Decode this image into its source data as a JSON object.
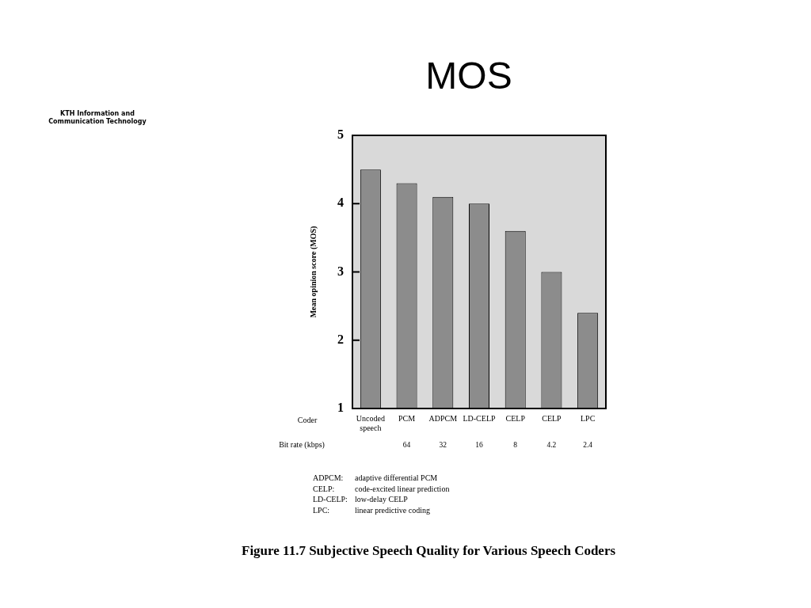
{
  "chart_data": {
    "type": "bar",
    "title": "MOS",
    "xlabel": "Coder",
    "ylabel": "Mean opinion score (MOS)",
    "categories": [
      "Uncoded speech",
      "PCM",
      "ADPCM",
      "LD-CELP",
      "CELP",
      "CELP",
      "LPC"
    ],
    "values": [
      4.5,
      4.3,
      4.1,
      4.0,
      3.6,
      3.0,
      2.4
    ],
    "color": "#8c8c8c",
    "ylim": [
      1,
      5
    ],
    "yticks": [
      1,
      2,
      3,
      4,
      5
    ],
    "grid": false,
    "legend": false,
    "annotations": [
      "KTH Information and Communication Technology",
      "Bit rate (kbps)",
      "64",
      "32",
      "16",
      "8",
      "4.2",
      "2.4",
      "ADPCM: adaptive differential PCM",
      "CELP: code-excited linear prediction",
      "LD-CELP: low-delay CELP",
      "LPC: linear predictive coding",
      "Figure 11.7 Subjective Speech Quality for Various Speech Coders"
    ]
  }
}
